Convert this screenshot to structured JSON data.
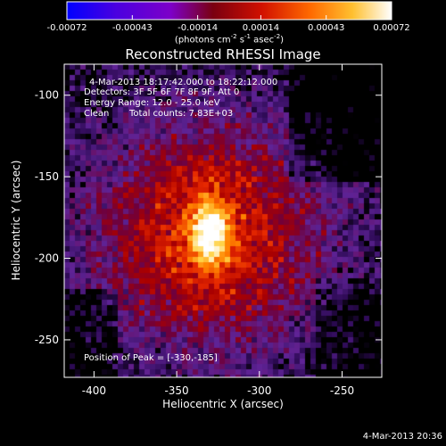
{
  "colorbar": {
    "ticks": [
      -0.00072,
      -0.00043,
      -0.00014,
      0.00014,
      0.00043,
      0.00072
    ],
    "tick_labels": [
      "-0.00072",
      "-0.00043",
      "-0.00014",
      "0.00014",
      "0.00043",
      "0.00072"
    ],
    "unit_prefix": "(photons cm",
    "unit_exp1": "-2",
    "unit_mid": " s",
    "unit_exp2": "-1",
    "unit_mid2": " asec",
    "unit_exp3": "-2",
    "unit_suffix": ")",
    "range": [
      -0.00072,
      0.00072
    ]
  },
  "annotations": {
    "time_range": "4-Mar-2013 18:17:42.000 to 18:22:12.000",
    "detectors": "Detectors: 3F 5F 6F 7F 8F 9F, Att 0",
    "energy": "Energy Range: 12.0 - 25.0 keV",
    "method": "Clean",
    "total_counts": "Total counts: 7.83E+03",
    "peak": "Position of Peak = [-330,-185]"
  },
  "footer": {
    "timestamp": "4-Mar-2013 20:36"
  },
  "chart_data": {
    "type": "heatmap",
    "title": "Reconstructed RHESSI Image",
    "xlabel": "Heliocentric X (arcsec)",
    "ylabel": "Heliocentric Y (arcsec)",
    "xlim": [
      -418,
      -226
    ],
    "ylim": [
      -273,
      -81
    ],
    "x_ticks": [
      -400,
      -350,
      -300,
      -250
    ],
    "y_ticks": [
      -250,
      -200,
      -150,
      -100
    ],
    "x_tick_labels": [
      "-400",
      "-350",
      "-300",
      "-250"
    ],
    "y_tick_labels": [
      "-250",
      "-200",
      "-150",
      "-100"
    ],
    "peak": {
      "x": -330,
      "y": -185
    },
    "colormap": "blue-purple-red-yellow-white",
    "colormap_stops": [
      "#0000ff",
      "#7d00c8",
      "#9a0000",
      "#e11e00",
      "#ff8a00",
      "#ffd23c",
      "#ffffff"
    ],
    "grid": false
  }
}
